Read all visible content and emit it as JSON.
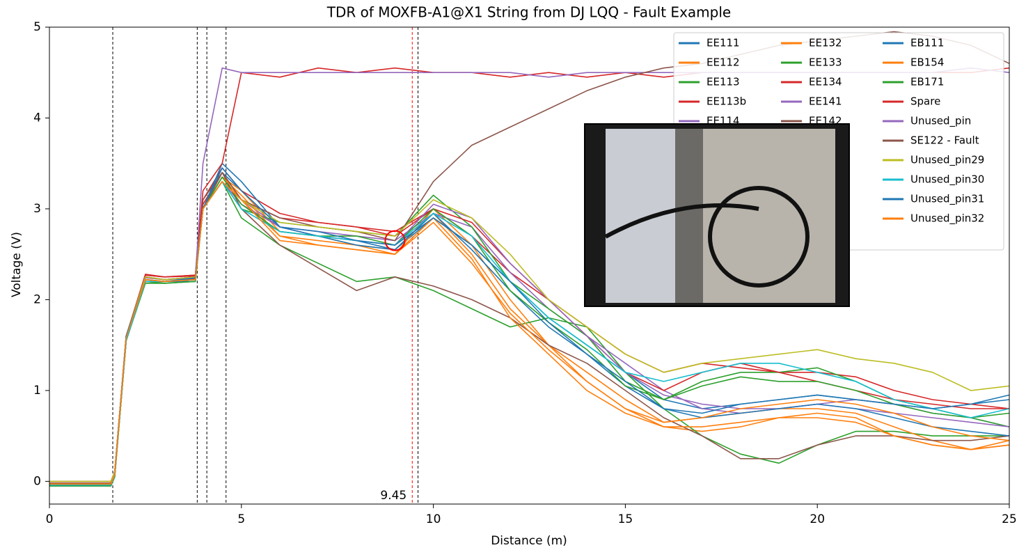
{
  "chart_data": {
    "type": "line",
    "title": "TDR of MOXFB-A1@X1 String from DJ LQQ - Fault Example",
    "xlabel": "Distance (m)",
    "ylabel": "Voltage (V)",
    "x": [
      0,
      1,
      1.6,
      1.7,
      2,
      2.5,
      3,
      3.8,
      4,
      4.5,
      5,
      6,
      7,
      8,
      9,
      10,
      11,
      12,
      13,
      14,
      15,
      16,
      17,
      18,
      19,
      20,
      21,
      22,
      23,
      24,
      25
    ],
    "xlim": [
      0,
      25
    ],
    "xticks": [
      0,
      5,
      10,
      15,
      20,
      25
    ],
    "ylim": [
      -0.25,
      5
    ],
    "yticks": [
      0,
      1,
      2,
      3,
      4,
      5
    ],
    "grid": false,
    "legend": "upper right",
    "vlines": [
      1.65,
      3.85,
      4.1,
      4.6,
      9.6
    ],
    "marker_x": 9.45,
    "marker_color": "#ff0000",
    "highlight": {
      "x": 9.0,
      "y": 2.65
    },
    "series": [
      {
        "name": "EE111",
        "color": "#1f77b4",
        "values": [
          0,
          0,
          0,
          0.1,
          1.6,
          2.25,
          2.22,
          2.25,
          3.0,
          3.4,
          3.2,
          2.8,
          2.7,
          2.65,
          2.55,
          2.9,
          2.6,
          2.2,
          1.8,
          1.5,
          1.2,
          0.9,
          0.8,
          0.85,
          0.9,
          0.95,
          0.9,
          0.85,
          0.8,
          0.85,
          0.9
        ]
      },
      {
        "name": "EE112",
        "color": "#ff7f0e",
        "values": [
          -0.03,
          -0.03,
          -0.03,
          0.08,
          1.55,
          2.2,
          2.2,
          2.22,
          3.0,
          3.35,
          3.2,
          2.75,
          2.7,
          2.6,
          2.5,
          3.0,
          2.6,
          2.0,
          1.5,
          1.1,
          0.8,
          0.6,
          0.55,
          0.6,
          0.7,
          0.75,
          0.7,
          0.5,
          0.4,
          0.35,
          0.4
        ]
      },
      {
        "name": "EE113",
        "color": "#2ca02c",
        "values": [
          -0.05,
          -0.05,
          -0.05,
          0.05,
          1.55,
          2.2,
          2.18,
          2.2,
          3.0,
          3.3,
          2.9,
          2.6,
          2.4,
          2.2,
          2.25,
          2.1,
          1.9,
          1.7,
          1.8,
          1.7,
          1.2,
          0.8,
          0.5,
          0.3,
          0.2,
          0.4,
          0.55,
          0.55,
          0.5,
          0.5,
          0.5
        ]
      },
      {
        "name": "EE113b",
        "color": "#d62728",
        "values": [
          0,
          0,
          0,
          0.1,
          1.6,
          2.28,
          2.25,
          2.27,
          3.1,
          3.45,
          3.2,
          2.95,
          2.85,
          2.8,
          2.75,
          3.0,
          2.7,
          2.3,
          2.0,
          1.7,
          1.4,
          1.2,
          1.3,
          1.25,
          1.2,
          1.2,
          1.15,
          1.0,
          0.9,
          0.85,
          0.8
        ]
      },
      {
        "name": "EE114",
        "color": "#9467bd",
        "values": [
          0,
          0,
          0,
          0.1,
          1.6,
          2.25,
          2.22,
          2.25,
          3.0,
          3.3,
          3.1,
          2.8,
          2.75,
          2.7,
          2.65,
          2.95,
          2.8,
          2.3,
          1.9,
          1.6,
          1.3,
          1.0,
          0.8,
          0.75,
          0.8,
          0.85,
          0.9,
          0.85,
          0.75,
          0.7,
          0.6
        ]
      },
      {
        "name": "EE132",
        "color": "#ff7f0e",
        "values": [
          -0.02,
          -0.02,
          -0.02,
          0.1,
          1.6,
          2.22,
          2.2,
          2.23,
          3.0,
          3.35,
          3.1,
          2.7,
          2.65,
          2.6,
          2.55,
          2.95,
          2.5,
          1.9,
          1.5,
          1.2,
          0.9,
          0.65,
          0.7,
          0.75,
          0.8,
          0.8,
          0.75,
          0.6,
          0.45,
          0.35,
          0.45
        ]
      },
      {
        "name": "EE133",
        "color": "#2ca02c",
        "values": [
          -0.04,
          -0.04,
          -0.04,
          0.06,
          1.55,
          2.2,
          2.2,
          2.22,
          3.0,
          3.3,
          3.0,
          2.85,
          2.8,
          2.75,
          2.7,
          3.15,
          2.8,
          2.2,
          1.9,
          1.6,
          1.1,
          0.9,
          1.1,
          1.2,
          1.2,
          1.25,
          1.1,
          0.9,
          0.8,
          0.7,
          0.6
        ]
      },
      {
        "name": "EE134",
        "color": "#d62728",
        "values": [
          0,
          0,
          0,
          0.1,
          1.6,
          2.27,
          2.25,
          2.26,
          3.05,
          3.4,
          3.1,
          2.9,
          2.85,
          2.8,
          2.7,
          3.0,
          2.85,
          2.4,
          2.0,
          1.6,
          1.2,
          1.0,
          1.2,
          1.3,
          1.2,
          1.1,
          1.0,
          0.9,
          0.85,
          0.8,
          0.8
        ]
      },
      {
        "name": "EE141",
        "color": "#9467bd",
        "values": [
          0,
          0,
          0,
          0.1,
          1.6,
          2.24,
          2.22,
          2.24,
          3.0,
          3.3,
          3.05,
          2.8,
          2.7,
          2.65,
          2.6,
          3.05,
          2.9,
          2.4,
          2.0,
          1.6,
          1.2,
          0.95,
          0.85,
          0.8,
          0.8,
          0.85,
          0.8,
          0.75,
          0.7,
          0.65,
          0.6
        ]
      },
      {
        "name": "EE142",
        "color": "#8c564b",
        "values": [
          -0.02,
          -0.02,
          -0.02,
          0.08,
          1.6,
          2.22,
          2.2,
          2.23,
          3.1,
          3.4,
          3.0,
          2.6,
          2.35,
          2.1,
          2.25,
          2.15,
          2.0,
          1.8,
          1.5,
          1.3,
          1.0,
          0.7,
          0.5,
          0.25,
          0.25,
          0.4,
          0.5,
          0.5,
          0.45,
          0.45,
          0.5
        ]
      },
      {
        "name": "EB111",
        "color": "#1f77b4",
        "values": [
          -0.05,
          -0.05,
          -0.05,
          0.05,
          1.55,
          2.2,
          2.2,
          2.2,
          3.0,
          3.5,
          3.3,
          2.8,
          2.7,
          2.6,
          2.55,
          2.95,
          2.55,
          2.1,
          1.7,
          1.4,
          1.05,
          0.8,
          0.7,
          0.75,
          0.8,
          0.85,
          0.8,
          0.7,
          0.6,
          0.55,
          0.5
        ]
      },
      {
        "name": "EB154",
        "color": "#ff7f0e",
        "values": [
          -0.04,
          -0.04,
          -0.04,
          0.06,
          1.55,
          2.2,
          2.2,
          2.22,
          3.0,
          3.35,
          3.15,
          2.7,
          2.6,
          2.55,
          2.5,
          2.9,
          2.45,
          1.8,
          1.4,
          1.0,
          0.75,
          0.6,
          0.6,
          0.65,
          0.7,
          0.7,
          0.65,
          0.5,
          0.4,
          0.35,
          0.4
        ]
      },
      {
        "name": "EB171",
        "color": "#2ca02c",
        "values": [
          -0.05,
          -0.05,
          -0.05,
          0.05,
          1.55,
          2.18,
          2.18,
          2.2,
          3.0,
          3.35,
          3.05,
          2.75,
          2.7,
          2.7,
          2.6,
          3.0,
          2.7,
          2.1,
          1.75,
          1.45,
          1.05,
          0.9,
          1.05,
          1.15,
          1.1,
          1.1,
          1.0,
          0.85,
          0.75,
          0.7,
          0.75
        ]
      },
      {
        "name": "Spare",
        "color": "#d62728",
        "values": [
          0,
          0,
          0,
          0.1,
          1.6,
          2.27,
          2.25,
          2.27,
          3.2,
          3.5,
          4.5,
          4.45,
          4.55,
          4.5,
          4.55,
          4.5,
          4.5,
          4.45,
          4.5,
          4.45,
          4.5,
          4.45,
          4.5,
          4.5,
          4.5,
          4.5,
          4.5,
          4.5,
          4.5,
          4.5,
          4.55
        ]
      },
      {
        "name": "Unused_pin",
        "color": "#9467bd",
        "values": [
          0,
          0,
          0,
          0.1,
          1.6,
          2.25,
          2.22,
          2.25,
          3.5,
          4.55,
          4.5,
          4.5,
          4.5,
          4.5,
          4.5,
          4.5,
          4.5,
          4.5,
          4.45,
          4.5,
          4.5,
          4.5,
          4.5,
          4.5,
          4.5,
          4.5,
          4.5,
          4.5,
          4.5,
          4.55,
          4.5
        ]
      },
      {
        "name": "SE122 - Fault",
        "color": "#8c564b",
        "values": [
          0,
          0,
          0,
          0.1,
          1.6,
          2.25,
          2.22,
          2.25,
          3.0,
          3.4,
          3.1,
          2.9,
          2.8,
          2.75,
          2.65,
          3.3,
          3.7,
          3.9,
          4.1,
          4.3,
          4.45,
          4.55,
          4.6,
          4.7,
          4.8,
          4.85,
          4.9,
          4.95,
          4.9,
          4.8,
          4.6
        ]
      },
      {
        "name": "Unused_pin29",
        "color": "#bcbd22",
        "values": [
          0,
          0,
          0,
          0.1,
          1.6,
          2.25,
          2.22,
          2.25,
          3.0,
          3.3,
          3.1,
          2.85,
          2.8,
          2.75,
          2.7,
          3.1,
          2.9,
          2.5,
          2.0,
          1.7,
          1.4,
          1.2,
          1.3,
          1.35,
          1.4,
          1.45,
          1.35,
          1.3,
          1.2,
          1.0,
          1.05
        ]
      },
      {
        "name": "Unused_pin30",
        "color": "#17becf",
        "values": [
          -0.04,
          -0.04,
          -0.04,
          0.06,
          1.55,
          2.2,
          2.2,
          2.22,
          3.0,
          3.3,
          3.0,
          2.75,
          2.7,
          2.65,
          2.6,
          2.95,
          2.7,
          2.2,
          1.8,
          1.5,
          1.2,
          1.1,
          1.2,
          1.3,
          1.3,
          1.2,
          1.1,
          0.9,
          0.8,
          0.7,
          0.8
        ]
      },
      {
        "name": "Unused_pin31",
        "color": "#1f77b4",
        "values": [
          -0.03,
          -0.03,
          -0.03,
          0.07,
          1.6,
          2.22,
          2.2,
          2.24,
          3.0,
          3.45,
          3.2,
          2.8,
          2.75,
          2.65,
          2.6,
          2.9,
          2.6,
          2.2,
          1.75,
          1.4,
          1.1,
          0.8,
          0.75,
          0.85,
          0.9,
          0.95,
          0.9,
          0.85,
          0.8,
          0.85,
          0.95
        ]
      },
      {
        "name": "Unused_pin32",
        "color": "#ff7f0e",
        "values": [
          -0.03,
          -0.03,
          -0.03,
          0.07,
          1.58,
          2.22,
          2.2,
          2.22,
          3.0,
          3.3,
          3.1,
          2.65,
          2.6,
          2.55,
          2.5,
          2.85,
          2.4,
          1.85,
          1.45,
          1.1,
          0.8,
          0.65,
          0.7,
          0.8,
          0.85,
          0.9,
          0.85,
          0.75,
          0.6,
          0.5,
          0.45
        ]
      }
    ]
  }
}
